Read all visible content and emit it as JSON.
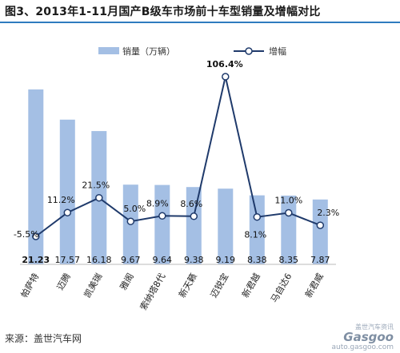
{
  "title": "图3、2013年1-11月国产B级车市场前十车型销量及增幅对比",
  "source": "来源：盖世汽车网",
  "watermark": {
    "cn": "盖世汽车资讯",
    "logo": "Gasgoo",
    "url": "auto.gasgoo.com"
  },
  "colors": {
    "bar": "#a4bfe4",
    "line": "#1f3a6b",
    "marker_fill": "#ffffff",
    "accent": "#2e7bbf"
  },
  "chart_data": {
    "type": "bar",
    "categories": [
      "帕萨特",
      "迈腾",
      "凯美瑞",
      "雅阁",
      "索纳塔8代",
      "新天籁",
      "迈锐宝",
      "新君越",
      "马自达6",
      "新君威"
    ],
    "series": [
      {
        "name": "销量（万辆）",
        "type": "bar",
        "values": [
          21.23,
          17.57,
          16.18,
          9.67,
          9.64,
          9.38,
          9.19,
          8.38,
          8.35,
          7.87
        ]
      },
      {
        "name": "增幅",
        "type": "line",
        "values": [
          -5.5,
          11.2,
          21.5,
          5.0,
          8.9,
          8.6,
          106.4,
          8.1,
          11.0,
          2.3
        ]
      }
    ],
    "bar_labels": [
      "21.23",
      "17.57",
      "16.18",
      "9.67",
      "9.64",
      "9.38",
      "9.19",
      "8.38",
      "8.35",
      "7.87"
    ],
    "line_labels": [
      "-5.5%",
      "11.2%",
      "21.5%",
      "5.0%",
      "8.9%",
      "8.6%",
      "106.4%",
      "8.1%",
      "11.0%",
      "2.3%"
    ],
    "legend": {
      "placement": "top",
      "bar_label": "销量（万辆）",
      "line_label": "增幅"
    },
    "grid": false
  }
}
